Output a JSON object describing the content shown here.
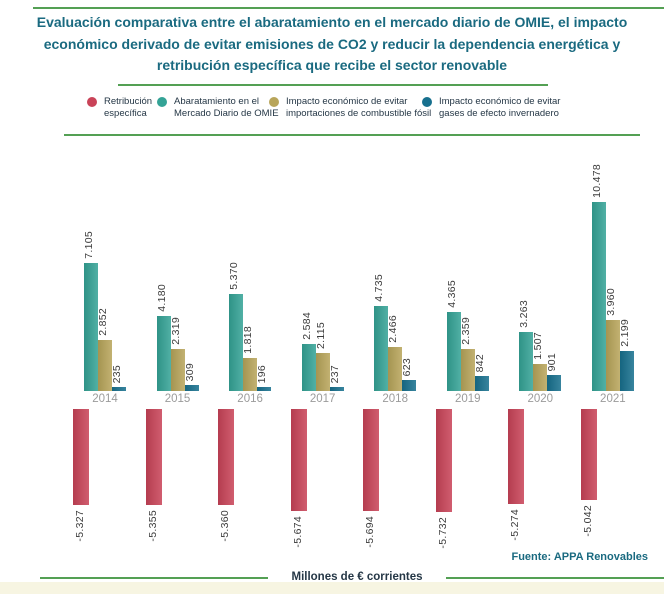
{
  "header": {
    "title": "Evaluación comparativa entre el abaratamiento en el mercado diario de OMIE, el impacto económico derivado de evitar emisiones de CO2 y reducir la dependencia energética y retribución específica que recibe el sector renovable"
  },
  "legend": [
    {
      "label": "Retribución específica",
      "color": "#c94358"
    },
    {
      "label": "Abaratamiento en el Mercado Diario de OMIE",
      "color": "#34a396"
    },
    {
      "label": "Impacto económico de evitar importaciones de combustible fósil",
      "color": "#b8a55a"
    },
    {
      "label": "Impacto económico de evitar gases de efecto invernadero",
      "color": "#17708e"
    }
  ],
  "chart_data": {
    "type": "bar",
    "categories": [
      "2014",
      "2015",
      "2016",
      "2017",
      "2018",
      "2019",
      "2020",
      "2021"
    ],
    "series": [
      {
        "name": "Retribución específica",
        "color": "#c94358",
        "values": [
          -5327,
          -5355,
          -5360,
          -5674,
          -5694,
          -5732,
          -5274,
          -5042
        ]
      },
      {
        "name": "Abaratamiento en el Mercado Diario de OMIE",
        "color": "#34a396",
        "values": [
          7105,
          4180,
          5370,
          2584,
          4735,
          4365,
          3263,
          10478
        ]
      },
      {
        "name": "Impacto económico de evitar importaciones de combustible fósil",
        "color": "#b8a55a",
        "values": [
          2852,
          2319,
          1818,
          2115,
          2466,
          2359,
          1507,
          3960
        ]
      },
      {
        "name": "Impacto económico de evitar gases de efecto invernadero",
        "color": "#17708e",
        "values": [
          235,
          309,
          196,
          237,
          623,
          842,
          901,
          2199
        ]
      }
    ],
    "title": "Evaluación comparativa entre el abaratamiento en el mercado diario de OMIE, el impacto económico derivado de evitar emisiones de CO2 y reducir la dependencia energética y retribución específica que recibe el sector renovable",
    "xlabel": "Millones de € corrientes",
    "ylabel": "",
    "value_label_format": "thousands separated by dot (es-ES)",
    "legend_position": "top",
    "grid": false,
    "ylim": [
      -6000,
      11000
    ]
  },
  "footer": {
    "source": "Fuente: APPA Renovables",
    "axis_caption": "Millones de € corrientes"
  },
  "colors": {
    "accent_green_line": "#54a054",
    "title_text": "#1a6a80",
    "legend_text": "#253746",
    "year_label": "#9b9b9b",
    "value_label": "#3c3c3c",
    "bottom_strip": "#f7f5e2"
  }
}
